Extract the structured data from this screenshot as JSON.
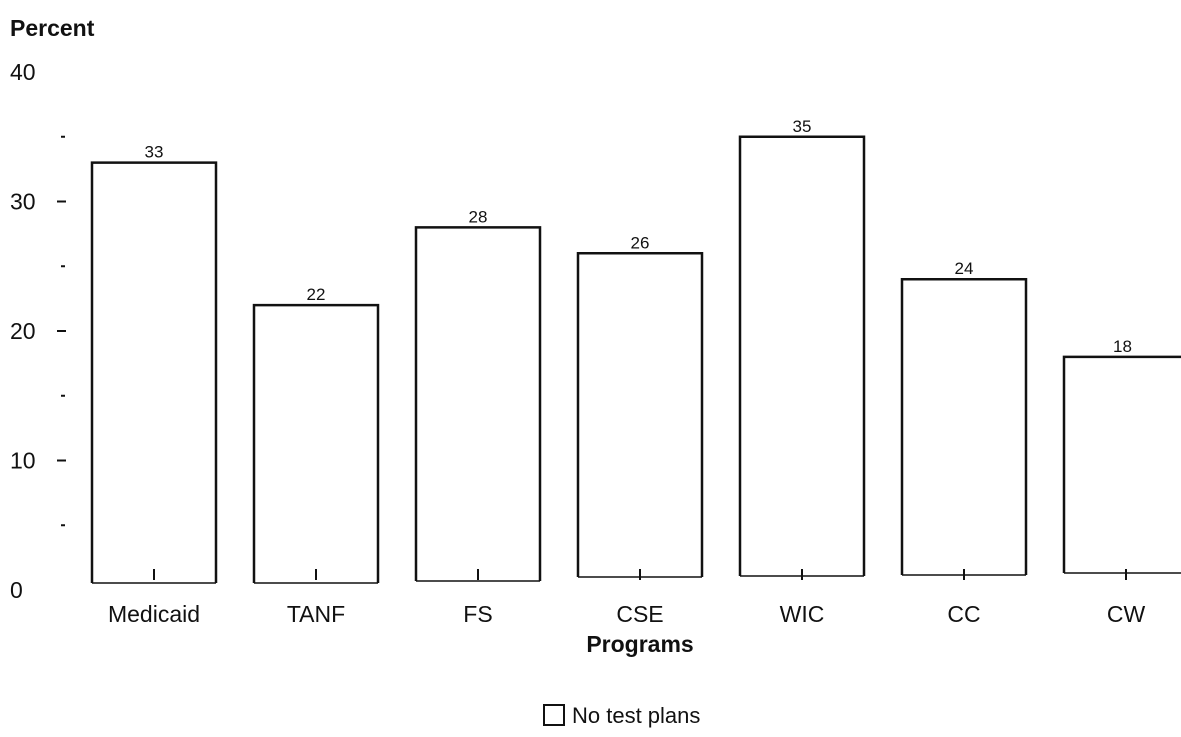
{
  "chart_data": {
    "type": "bar",
    "ylabel": "Percent",
    "xlabel": "Programs",
    "categories": [
      "Medicaid",
      "TANF",
      "FS",
      "CSE",
      "WIC",
      "CC",
      "CW"
    ],
    "series": [
      {
        "name": "No test plans",
        "values": [
          33,
          22,
          28,
          26,
          35,
          24,
          18
        ]
      }
    ],
    "data_labels": [
      "33",
      "22",
      "28",
      "26",
      "35",
      "24",
      "18"
    ],
    "ylim": [
      0,
      40
    ],
    "yticks": [
      "0",
      "10",
      "20",
      "30",
      "40"
    ],
    "grid": false,
    "legend": {
      "position": "bottom-center",
      "label": "No test plans"
    },
    "colors": {
      "bar_fill": "#ffffff",
      "bar_stroke": "#111111",
      "text": "#111111"
    }
  }
}
